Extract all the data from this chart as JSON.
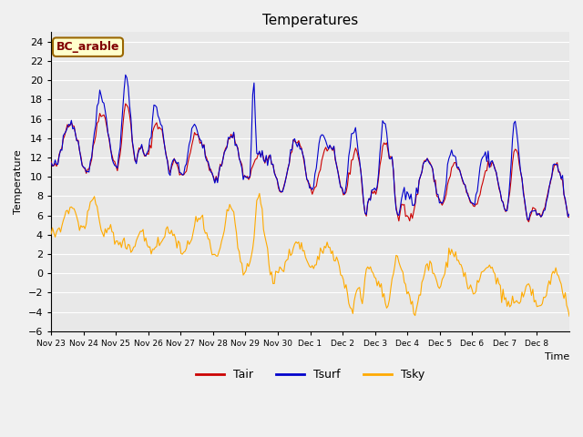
{
  "title": "Temperatures",
  "xlabel": "Time",
  "ylabel": "Temperature",
  "ylim": [
    -6,
    25
  ],
  "yticks": [
    -6,
    -4,
    -2,
    0,
    2,
    4,
    6,
    8,
    10,
    12,
    14,
    16,
    18,
    20,
    22,
    24
  ],
  "legend_labels": [
    "Tair",
    "Tsurf",
    "Tsky"
  ],
  "legend_colors": [
    "#cc0000",
    "#0000cc",
    "#ffaa00"
  ],
  "box_label": "BC_arable",
  "box_bg": "#ffffcc",
  "box_border": "#996600",
  "box_text_color": "#800000",
  "plot_bg": "#e8e8e8",
  "grid_color": "#ffffff",
  "fig_bg": "#f0f0f0"
}
